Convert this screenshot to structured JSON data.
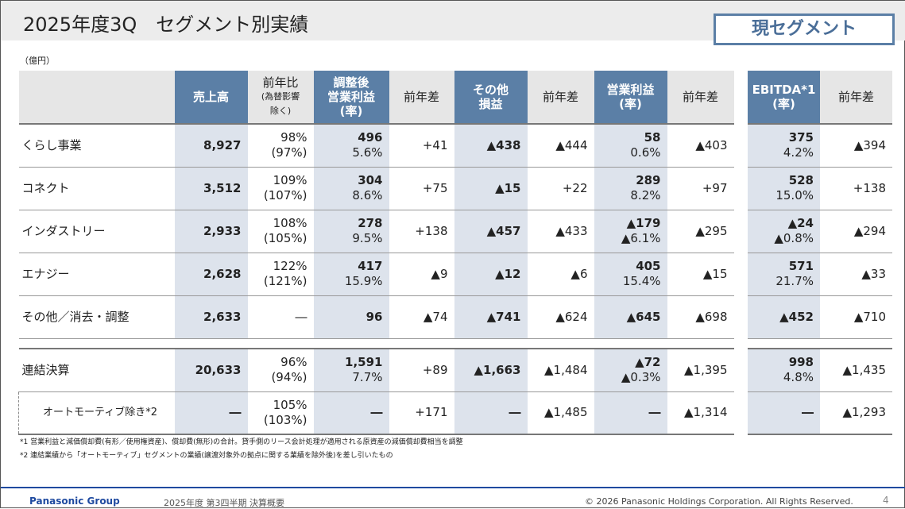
{
  "title": "2025年度3Q　セグメント別実績",
  "badge": "現セグメント",
  "unit": "（億円）",
  "headers": [
    {
      "l1": "売上高",
      "shade": true
    },
    {
      "l1": "前年比",
      "l2": "(為替影響",
      "l3": "除く)",
      "shade": false
    },
    {
      "l1": "調整後",
      "l2": "営業利益",
      "l3": "(率)",
      "shade": true
    },
    {
      "l1": "前年差",
      "shade": false
    },
    {
      "l1": "その他",
      "l2": "損益",
      "shade": true
    },
    {
      "l1": "前年差",
      "shade": false
    },
    {
      "l1": "営業利益",
      "l2": "(率)",
      "shade": true
    },
    {
      "l1": "前年差",
      "shade": false
    }
  ],
  "ebitda_headers": [
    {
      "l1": "EBITDA*1",
      "l2": "(率)",
      "shade": true
    },
    {
      "l1": "前年差",
      "shade": false
    }
  ],
  "rows": [
    {
      "label": "くらし事業",
      "cells": [
        [
          "8,927"
        ],
        [
          "98%",
          "(97%)"
        ],
        [
          "496",
          "5.6%"
        ],
        [
          "+41"
        ],
        [
          "▲438"
        ],
        [
          "▲444"
        ],
        [
          "58",
          "0.6%"
        ],
        [
          "▲403"
        ]
      ],
      "ebitda": [
        [
          "375",
          "4.2%"
        ],
        [
          "▲394"
        ]
      ]
    },
    {
      "label": "コネクト",
      "cells": [
        [
          "3,512"
        ],
        [
          "109%",
          "(107%)"
        ],
        [
          "304",
          "8.6%"
        ],
        [
          "+75"
        ],
        [
          "▲15"
        ],
        [
          "+22"
        ],
        [
          "289",
          "8.2%"
        ],
        [
          "+97"
        ]
      ],
      "ebitda": [
        [
          "528",
          "15.0%"
        ],
        [
          "+138"
        ]
      ]
    },
    {
      "label": "インダストリー",
      "cells": [
        [
          "2,933"
        ],
        [
          "108%",
          "(105%)"
        ],
        [
          "278",
          "9.5%"
        ],
        [
          "+138"
        ],
        [
          "▲457"
        ],
        [
          "▲433"
        ],
        [
          "▲179",
          "▲6.1%"
        ],
        [
          "▲295"
        ]
      ],
      "ebitda": [
        [
          "▲24",
          "▲0.8%"
        ],
        [
          "▲294"
        ]
      ]
    },
    {
      "label": "エナジー",
      "cells": [
        [
          "2,628"
        ],
        [
          "122%",
          "(121%)"
        ],
        [
          "417",
          "15.9%"
        ],
        [
          "▲9"
        ],
        [
          "▲12"
        ],
        [
          "▲6"
        ],
        [
          "405",
          "15.4%"
        ],
        [
          "▲15"
        ]
      ],
      "ebitda": [
        [
          "571",
          "21.7%"
        ],
        [
          "▲33"
        ]
      ]
    },
    {
      "label": "その他／消去・調整",
      "cells": [
        [
          "2,633"
        ],
        [
          "―"
        ],
        [
          "96"
        ],
        [
          "▲74"
        ],
        [
          "▲741"
        ],
        [
          "▲624"
        ],
        [
          "▲645"
        ],
        [
          "▲698"
        ]
      ],
      "ebitda": [
        [
          "▲452"
        ],
        [
          "▲710"
        ]
      ]
    }
  ],
  "total_rows": [
    {
      "label": "連結決算",
      "cells": [
        [
          "20,633"
        ],
        [
          "96%",
          "(94%)"
        ],
        [
          "1,591",
          "7.7%"
        ],
        [
          "+89"
        ],
        [
          "▲1,663"
        ],
        [
          "▲1,484"
        ],
        [
          "▲72",
          "▲0.3%"
        ],
        [
          "▲1,395"
        ]
      ],
      "ebitda": [
        [
          "998",
          "4.8%"
        ],
        [
          "▲1,435"
        ]
      ]
    },
    {
      "label": "オートモーティブ除き*2",
      "cells": [
        [
          "―"
        ],
        [
          "105%",
          "(103%)"
        ],
        [
          "―"
        ],
        [
          "+171"
        ],
        [
          "―"
        ],
        [
          "▲1,485"
        ],
        [
          "―"
        ],
        [
          "▲1,314"
        ]
      ],
      "ebitda": [
        [
          "―"
        ],
        [
          "▲1,293"
        ]
      ]
    }
  ],
  "footnotes": [
    "*1  営業利益と減価償却費(有形／使用権資産)、償却費(無形)の合計。貸手側のリース会計処理が適用される原資産の減価償却費相当を調整",
    "*2  連結業績から「オートモーティブ」セグメントの業績(譲渡対象外の拠点に関する業績を除外後)を差し引いたもの"
  ],
  "footer": {
    "brand": "Panasonic Group",
    "doc": "2025年度 第3四半期 決算概要",
    "copyright": "© 2026 Panasonic Holdings Corporation. All Rights Reserved.",
    "page": "4"
  }
}
